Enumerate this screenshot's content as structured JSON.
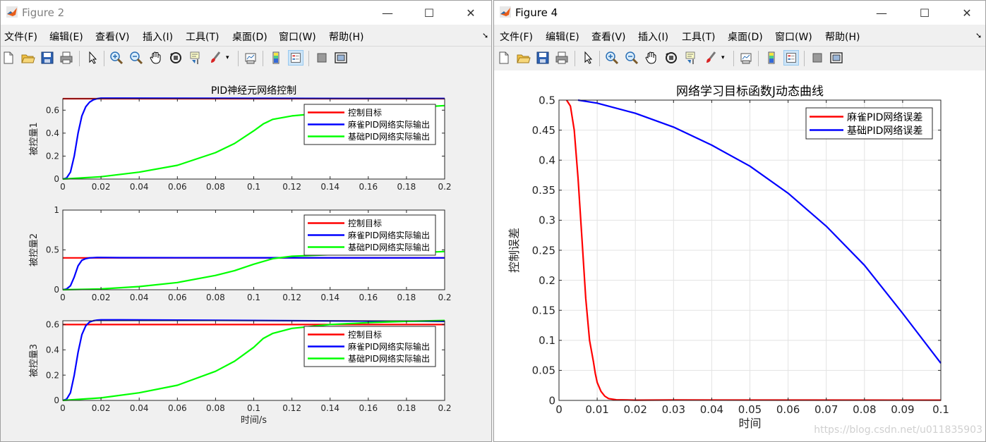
{
  "left_window": {
    "title": "Figure 2",
    "menus": [
      "文件(F)",
      "编辑(E)",
      "查看(V)",
      "插入(I)",
      "工具(T)",
      "桌面(D)",
      "窗口(W)",
      "帮助(H)"
    ]
  },
  "right_window": {
    "title": "Figure 4",
    "menus": [
      "文件(F)",
      "编辑(E)",
      "查看(V)",
      "插入(I)",
      "工具(T)",
      "桌面(D)",
      "窗口(W)",
      "帮助(H)"
    ]
  },
  "watermark": "https://blog.csdn.net/u011835903",
  "toolbar_icons": [
    "new-file-icon",
    "open-folder-icon",
    "save-icon",
    "print-icon",
    "pointer-icon",
    "zoom-in-icon",
    "zoom-out-icon",
    "pan-hand-icon",
    "rotate-3d-icon",
    "data-cursor-icon",
    "brush-icon",
    "brush-dropdown-icon",
    "link-plot-icon",
    "colorbar-icon",
    "legend-icon",
    "hide-plot-tools-icon",
    "show-plot-tools-icon"
  ],
  "chart_data": [
    {
      "type": "line",
      "title": "PID神经元网络控制",
      "xlabel": "",
      "ylabel": "被控量1",
      "xlim": [
        0,
        0.2
      ],
      "ylim": [
        0,
        0.7
      ],
      "xticks": [
        "0",
        "0.02",
        "0.04",
        "0.06",
        "0.08",
        "0.1",
        "0.12",
        "0.14",
        "0.16",
        "0.18",
        "0.2"
      ],
      "yticks": [
        "0",
        "0.2",
        "0.4",
        "0.6"
      ],
      "legend_position": "top-right",
      "series": [
        {
          "name": "控制目标",
          "color": "#ff0000",
          "x": [
            0,
            0.2
          ],
          "y": [
            0.7,
            0.7
          ]
        },
        {
          "name": "麻雀PID网络实际输出",
          "color": "#0000ff",
          "x": [
            0,
            0.002,
            0.004,
            0.006,
            0.008,
            0.01,
            0.012,
            0.014,
            0.016,
            0.018,
            0.02,
            0.025,
            0.03,
            0.06,
            0.1,
            0.15,
            0.2
          ],
          "y": [
            0,
            0.01,
            0.06,
            0.2,
            0.4,
            0.55,
            0.63,
            0.67,
            0.69,
            0.7,
            0.705,
            0.705,
            0.705,
            0.704,
            0.703,
            0.702,
            0.702
          ]
        },
        {
          "name": "基础PID网络实际输出",
          "color": "#00ff00",
          "x": [
            0,
            0.02,
            0.04,
            0.06,
            0.08,
            0.09,
            0.1,
            0.105,
            0.11,
            0.12,
            0.14,
            0.16,
            0.18,
            0.2
          ],
          "y": [
            0,
            0.02,
            0.06,
            0.12,
            0.23,
            0.31,
            0.42,
            0.48,
            0.52,
            0.55,
            0.58,
            0.6,
            0.62,
            0.64
          ]
        }
      ]
    },
    {
      "type": "line",
      "title": "",
      "xlabel": "",
      "ylabel": "被控量2",
      "xlim": [
        0,
        0.2
      ],
      "ylim": [
        0,
        1
      ],
      "xticks": [
        "0",
        "0.02",
        "0.04",
        "0.06",
        "0.08",
        "0.1",
        "0.12",
        "0.14",
        "0.16",
        "0.18",
        "0.2"
      ],
      "yticks": [
        "0",
        "0.5",
        "1"
      ],
      "legend_position": "top-right",
      "series": [
        {
          "name": "控制目标",
          "color": "#ff0000",
          "x": [
            0,
            0.2
          ],
          "y": [
            0.4,
            0.4
          ]
        },
        {
          "name": "麻雀PID网络实际输出",
          "color": "#0000ff",
          "x": [
            0,
            0.002,
            0.004,
            0.006,
            0.008,
            0.01,
            0.012,
            0.014,
            0.018,
            0.03,
            0.2
          ],
          "y": [
            0,
            0.01,
            0.05,
            0.16,
            0.3,
            0.37,
            0.39,
            0.4,
            0.405,
            0.403,
            0.4
          ]
        },
        {
          "name": "基础PID网络实际输出",
          "color": "#00ff00",
          "x": [
            0,
            0.02,
            0.04,
            0.06,
            0.08,
            0.09,
            0.1,
            0.11,
            0.12,
            0.14,
            0.16,
            0.18,
            0.2
          ],
          "y": [
            0,
            0.01,
            0.04,
            0.09,
            0.18,
            0.24,
            0.32,
            0.39,
            0.42,
            0.44,
            0.45,
            0.46,
            0.48
          ]
        }
      ]
    },
    {
      "type": "line",
      "title": "",
      "xlabel": "时间/s",
      "ylabel": "被控量3",
      "xlim": [
        0,
        0.2
      ],
      "ylim": [
        0,
        0.63
      ],
      "xticks": [
        "0",
        "0.02",
        "0.04",
        "0.06",
        "0.08",
        "0.1",
        "0.12",
        "0.14",
        "0.16",
        "0.18",
        "0.2"
      ],
      "yticks": [
        "0",
        "0.2",
        "0.4",
        "0.6"
      ],
      "legend_position": "top-right",
      "series": [
        {
          "name": "控制目标",
          "color": "#ff0000",
          "x": [
            0,
            0.2
          ],
          "y": [
            0.6,
            0.6
          ]
        },
        {
          "name": "麻雀PID网络实际输出",
          "color": "#0000ff",
          "x": [
            0,
            0.002,
            0.004,
            0.006,
            0.008,
            0.01,
            0.012,
            0.014,
            0.016,
            0.018,
            0.02,
            0.025,
            0.03,
            0.06,
            0.1,
            0.15,
            0.2
          ],
          "y": [
            0,
            0.01,
            0.06,
            0.2,
            0.38,
            0.52,
            0.59,
            0.62,
            0.63,
            0.635,
            0.637,
            0.637,
            0.637,
            0.635,
            0.632,
            0.628,
            0.625
          ]
        },
        {
          "name": "基础PID网络实际输出",
          "color": "#00ff00",
          "x": [
            0,
            0.02,
            0.04,
            0.06,
            0.08,
            0.09,
            0.1,
            0.105,
            0.11,
            0.12,
            0.14,
            0.16,
            0.18,
            0.2
          ],
          "y": [
            0,
            0.02,
            0.06,
            0.12,
            0.23,
            0.31,
            0.42,
            0.49,
            0.53,
            0.57,
            0.6,
            0.615,
            0.625,
            0.632
          ]
        }
      ]
    },
    {
      "type": "line",
      "title": "网络学习目标函数J动态曲线",
      "xlabel": "时间",
      "ylabel": "控制误差",
      "xlim": [
        0,
        0.1
      ],
      "ylim": [
        0,
        0.5
      ],
      "grid": true,
      "xticks": [
        "0",
        "0.01",
        "0.02",
        "0.03",
        "0.04",
        "0.05",
        "0.06",
        "0.07",
        "0.08",
        "0.09",
        "0.1"
      ],
      "yticks": [
        "0",
        "0.05",
        "0.1",
        "0.15",
        "0.2",
        "0.25",
        "0.3",
        "0.35",
        "0.4",
        "0.45",
        "0.5"
      ],
      "legend_position": "top-right",
      "series": [
        {
          "name": "麻雀PID网络误差",
          "color": "#ff0000",
          "x": [
            0.002,
            0.003,
            0.004,
            0.005,
            0.006,
            0.007,
            0.008,
            0.009,
            0.0095,
            0.01,
            0.011,
            0.012,
            0.013,
            0.015,
            0.02,
            0.03,
            0.1
          ],
          "y": [
            0.5,
            0.49,
            0.45,
            0.37,
            0.27,
            0.17,
            0.1,
            0.065,
            0.045,
            0.03,
            0.015,
            0.007,
            0.003,
            0.001,
            0.0005,
            0.0007,
            0.0005
          ]
        },
        {
          "name": "基础PID网络误差",
          "color": "#0000ff",
          "x": [
            0.005,
            0.01,
            0.02,
            0.03,
            0.04,
            0.05,
            0.06,
            0.07,
            0.08,
            0.09,
            0.1
          ],
          "y": [
            0.5,
            0.495,
            0.478,
            0.455,
            0.425,
            0.39,
            0.345,
            0.29,
            0.225,
            0.145,
            0.062
          ]
        }
      ]
    }
  ]
}
